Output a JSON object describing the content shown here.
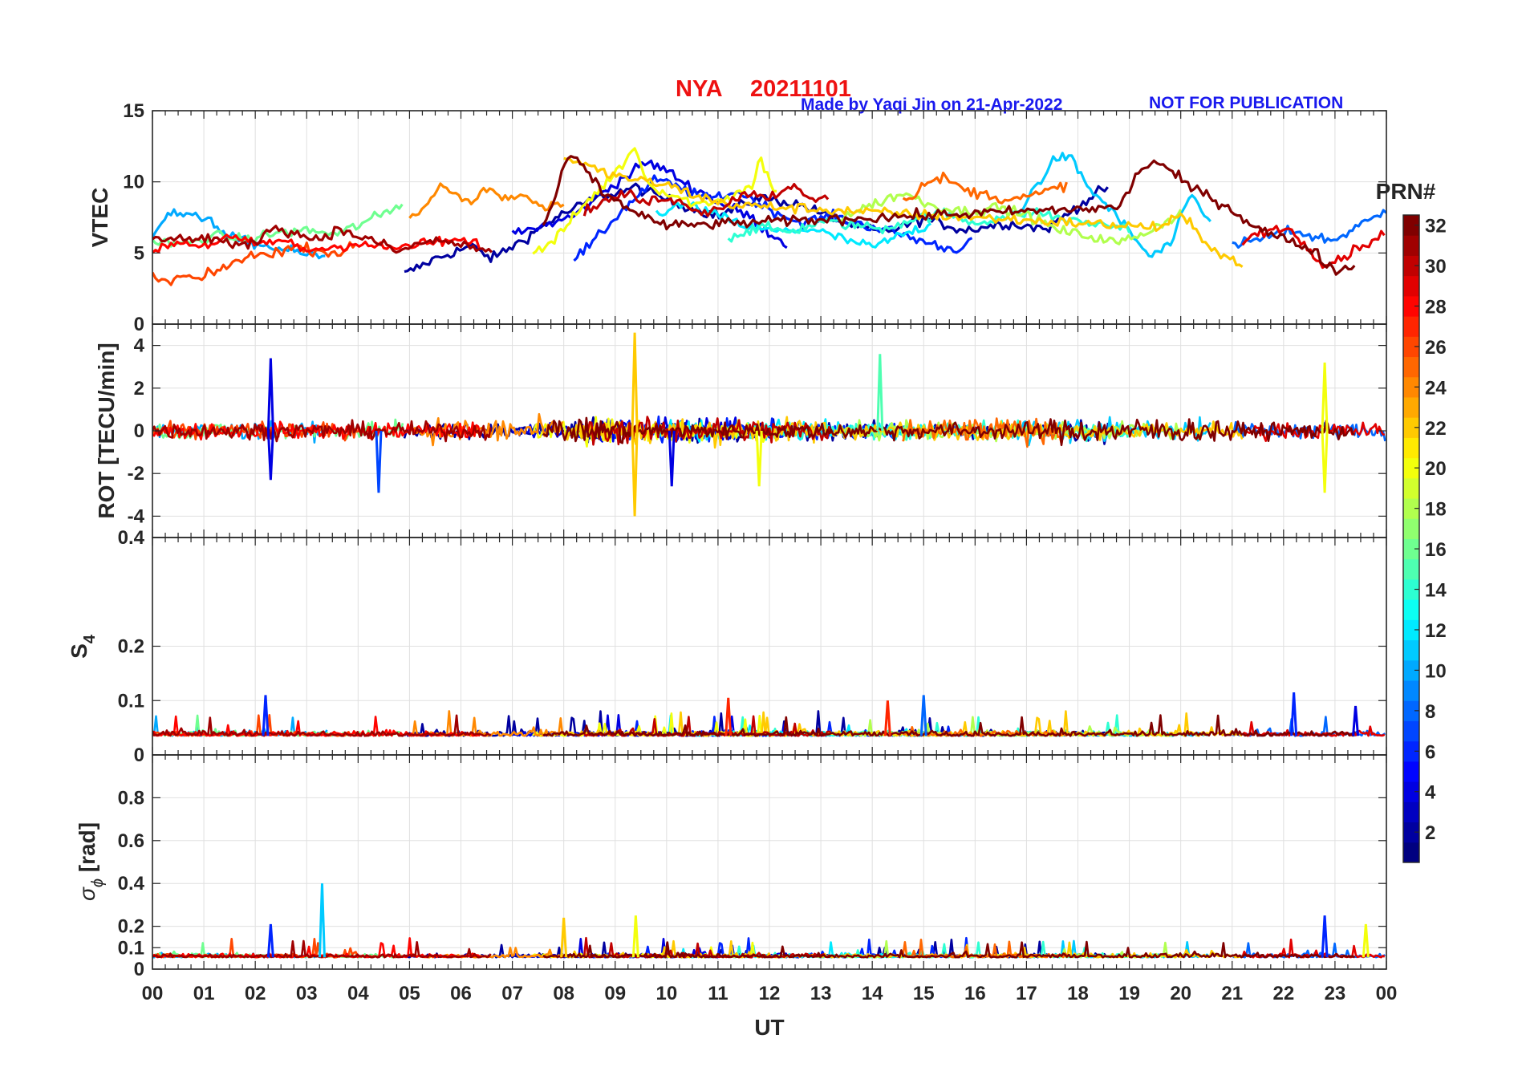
{
  "chart_data": {
    "type": "line",
    "title": {
      "station": "NYA",
      "date": "20211101",
      "credit": "Made by Yaqi Jin on 21-Apr-2022",
      "notice": "NOT FOR PUBLICATION"
    },
    "xlabel": "UT",
    "x_range": [
      0,
      24
    ],
    "x_ticks": [
      "00",
      "01",
      "02",
      "03",
      "04",
      "05",
      "06",
      "07",
      "08",
      "09",
      "10",
      "11",
      "12",
      "13",
      "14",
      "15",
      "16",
      "17",
      "18",
      "19",
      "20",
      "21",
      "22",
      "23",
      "00"
    ],
    "colorbar": {
      "label": "PRN#",
      "range": [
        1,
        32
      ],
      "ticks": [
        "2",
        "4",
        "6",
        "8",
        "10",
        "12",
        "14",
        "16",
        "18",
        "20",
        "22",
        "24",
        "26",
        "28",
        "30",
        "32"
      ]
    },
    "panels": [
      {
        "id": "vtec",
        "ylabel": "VTEC",
        "ylim": [
          0,
          15
        ],
        "y_ticks": [
          {
            "v": 0,
            "t": "0"
          },
          {
            "v": 5,
            "t": "5"
          },
          {
            "v": 10,
            "t": "10"
          },
          {
            "v": 15,
            "t": "15"
          }
        ],
        "description": "Vertical TEC per satellite, mostly 4-9 TECU, peaks near 12 TECU around 08-10 UT and 18-19 UT"
      },
      {
        "id": "rot",
        "ylabel": "ROT [TECU/min]",
        "ylim": [
          -5,
          5
        ],
        "y_ticks": [
          {
            "v": -4,
            "t": "-4"
          },
          {
            "v": -2,
            "t": "-2"
          },
          {
            "v": 0,
            "t": "0"
          },
          {
            "v": 2,
            "t": "2"
          },
          {
            "v": 4,
            "t": "4"
          }
        ],
        "description": "Rate of TEC, mostly within +/-1, spikes to +4.6 and -4 near 09.4 UT"
      },
      {
        "id": "s4",
        "ylabel_main": "S",
        "ylabel_sub": "4",
        "ylim": [
          0,
          0.4
        ],
        "y_ticks": [
          {
            "v": 0,
            "t": "0"
          },
          {
            "v": 0.1,
            "t": "0.1"
          },
          {
            "v": 0.2,
            "t": "0.2"
          },
          {
            "v": 0.4,
            "t": "0.4"
          }
        ],
        "description": "Amplitude scintillation index, mostly 0.03-0.06, peaks near 0.11"
      },
      {
        "id": "sigma_phi",
        "ylabel_main": "σ",
        "ylabel_sub": "ϕ",
        "ylabel_unit": " [rad]",
        "ylim": [
          0,
          1
        ],
        "y_ticks": [
          {
            "v": 0,
            "t": "0"
          },
          {
            "v": 0.1,
            "t": "0.1"
          },
          {
            "v": 0.2,
            "t": "0.2"
          },
          {
            "v": 0.4,
            "t": "0.4"
          },
          {
            "v": 0.6,
            "t": "0.6"
          },
          {
            "v": 0.8,
            "t": "0.8"
          }
        ],
        "description": "Phase scintillation index, mostly 0.04-0.1, spike to 0.4 near 03.3 UT"
      }
    ],
    "series": [
      {
        "prn": 2,
        "x": [
          4.9,
          5.5,
          6.2,
          6.6,
          7.2,
          7.8,
          8.6,
          9.4,
          10.2,
          11.0,
          11.8,
          12.6,
          13.4,
          14.2,
          15.0,
          15.8,
          16.6,
          17.4,
          18.0,
          18.6
        ],
        "y": [
          3.5,
          4.6,
          5.5,
          4.6,
          5.9,
          7.4,
          8.8,
          9.6,
          8.5,
          7.6,
          8.9,
          8.4,
          7.2,
          6.4,
          7.4,
          6.6,
          7.1,
          6.7,
          8.3,
          9.7
        ]
      },
      {
        "prn": 4,
        "x": [
          7.0,
          7.6,
          8.2,
          8.8,
          9.3,
          9.6,
          10.0,
          10.4,
          11.0,
          11.6,
          12.0,
          12.4
        ],
        "y": [
          6.3,
          6.9,
          7.6,
          9.4,
          10.6,
          11.4,
          10.8,
          9.8,
          8.6,
          7.6,
          6.4,
          5.5
        ]
      },
      {
        "prn": 6,
        "x": [
          8.2,
          8.6,
          9.0,
          9.4,
          9.8,
          10.3,
          10.8,
          11.4,
          12.0,
          12.6,
          13.2,
          13.8,
          14.4,
          15.0,
          15.6,
          16.0
        ],
        "y": [
          4.6,
          5.8,
          7.5,
          8.9,
          10.2,
          9.5,
          8.8,
          9.3,
          8.1,
          7.1,
          7.6,
          7.0,
          6.5,
          5.8,
          5.2,
          6.1
        ]
      },
      {
        "prn": 8,
        "x": [
          21.0,
          21.4,
          21.8,
          22.2,
          22.6,
          23.0,
          23.4,
          23.8,
          24.0
        ],
        "y": [
          5.4,
          5.9,
          6.2,
          6.6,
          6.1,
          5.9,
          6.8,
          7.5,
          8.1
        ]
      },
      {
        "prn": 10,
        "x": [
          0.0,
          0.3,
          0.6,
          0.9,
          1.1,
          1.4,
          1.8,
          2.2,
          2.6,
          3.0,
          3.4
        ],
        "y": [
          6.4,
          7.8,
          7.7,
          7.4,
          7.6,
          6.2,
          5.8,
          5.5,
          5.2,
          4.9,
          4.7
        ]
      },
      {
        "prn": 11,
        "x": [
          16.8,
          17.2,
          17.6,
          17.9,
          18.2,
          18.6,
          19.0,
          19.4,
          19.8,
          20.2,
          20.6
        ],
        "y": [
          7.6,
          9.8,
          11.8,
          11.5,
          9.6,
          8.2,
          6.5,
          4.7,
          5.6,
          9.1,
          7.0
        ]
      },
      {
        "prn": 12,
        "x": [
          9.8,
          10.4,
          11.0,
          11.6,
          12.2,
          12.8,
          13.4,
          14.0,
          14.6,
          15.2
        ],
        "y": [
          7.8,
          8.4,
          7.6,
          6.8,
          6.5,
          6.7,
          6.0,
          5.4,
          6.3,
          7.1
        ]
      },
      {
        "prn": 14,
        "x": [
          11.2,
          11.8,
          12.4,
          13.0,
          13.6,
          14.2,
          14.8,
          15.4,
          16.0,
          16.6,
          17.2,
          17.8,
          18.4,
          19.0
        ],
        "y": [
          6.1,
          6.8,
          6.5,
          7.2,
          7.0,
          6.7,
          7.4,
          7.8,
          7.1,
          7.6,
          7.9,
          7.3,
          7.0,
          6.8
        ]
      },
      {
        "prn": 16,
        "x": [
          0.0,
          0.6,
          1.2,
          1.8,
          2.4,
          3.0,
          3.6,
          4.2,
          4.6,
          4.9
        ],
        "y": [
          5.8,
          5.6,
          6.2,
          5.9,
          6.4,
          6.6,
          6.3,
          7.3,
          7.9,
          8.6
        ]
      },
      {
        "prn": 18,
        "x": [
          13.4,
          14.0,
          14.6,
          15.2,
          15.8,
          16.4,
          17.0,
          17.6,
          18.2,
          18.8,
          19.4,
          20.0
        ],
        "y": [
          7.5,
          8.4,
          9.2,
          8.3,
          7.9,
          8.2,
          7.7,
          6.6,
          6.2,
          5.7,
          6.6,
          7.8
        ]
      },
      {
        "prn": 20,
        "x": [
          7.4,
          7.8,
          8.4,
          8.9,
          9.2,
          9.4,
          9.6,
          10.0,
          10.6,
          11.2,
          11.7,
          11.8,
          12.2
        ],
        "y": [
          5.0,
          5.8,
          8.4,
          10.2,
          11.5,
          12.6,
          10.0,
          9.2,
          8.4,
          8.9,
          9.8,
          11.8,
          8.6
        ]
      },
      {
        "prn": 22,
        "x": [
          8.0,
          8.4,
          8.8,
          9.2,
          9.6,
          10.0,
          10.6,
          11.2,
          19.6,
          20.0,
          20.4,
          20.8,
          21.2
        ],
        "y": [
          11.8,
          11.2,
          10.6,
          10.3,
          10.0,
          9.8,
          9.0,
          8.4,
          6.8,
          7.6,
          6.2,
          4.8,
          4.3
        ]
      },
      {
        "prn": 24,
        "x": [
          5.0,
          5.4,
          5.6,
          5.9,
          6.2,
          6.5,
          6.8,
          7.2,
          7.6,
          8.0
        ],
        "y": [
          7.2,
          8.6,
          9.8,
          9.1,
          8.5,
          9.6,
          8.9,
          9.1,
          8.3,
          8.6
        ]
      },
      {
        "prn": 25,
        "x": [
          14.6,
          15.0,
          15.4,
          15.8,
          16.2,
          16.6,
          17.0,
          17.4,
          17.8
        ],
        "y": [
          8.6,
          9.8,
          10.3,
          9.4,
          9.1,
          8.8,
          8.9,
          9.3,
          9.9
        ]
      },
      {
        "prn": 26,
        "x": [
          0.0,
          0.3,
          0.6,
          0.9,
          1.2,
          1.6,
          2.0,
          2.4,
          2.8,
          3.2,
          3.6,
          4.0
        ],
        "y": [
          3.3,
          2.9,
          3.4,
          3.1,
          3.6,
          4.4,
          4.8,
          5.1,
          5.4,
          5.2,
          5.0,
          5.5
        ]
      },
      {
        "prn": 28,
        "x": [
          0.0,
          0.5,
          1.0,
          1.5,
          2.0,
          2.5,
          3.0,
          3.5,
          4.0,
          4.6,
          5.2,
          5.8,
          6.4
        ],
        "y": [
          5.2,
          5.8,
          5.5,
          6.1,
          5.6,
          5.9,
          5.2,
          5.4,
          5.7,
          5.3,
          5.6,
          5.9,
          5.6
        ]
      },
      {
        "prn": 29,
        "x": [
          21.2,
          21.6,
          22.0,
          22.4,
          22.8,
          23.2,
          23.6,
          24.0
        ],
        "y": [
          5.8,
          6.5,
          6.9,
          5.7,
          4.2,
          4.8,
          5.7,
          6.3
        ]
      },
      {
        "prn": 30,
        "x": [
          8.4,
          8.8,
          9.2,
          9.6,
          10.0,
          10.4,
          10.8,
          11.2,
          11.6,
          12.0,
          12.4,
          12.8,
          13.2
        ],
        "y": [
          8.0,
          8.6,
          9.2,
          8.5,
          9.0,
          8.3,
          7.9,
          8.5,
          9.3,
          8.9,
          9.8,
          8.6,
          9.1
        ]
      },
      {
        "prn": 31,
        "x": [
          0.0,
          0.4,
          0.8,
          1.2,
          1.6,
          2.0,
          2.4,
          2.8,
          3.2,
          3.6,
          4.0,
          4.4,
          4.8,
          5.4,
          6.0,
          6.6
        ],
        "y": [
          5.8,
          6.2,
          5.9,
          6.1,
          5.4,
          5.8,
          6.9,
          6.3,
          6.0,
          6.6,
          6.2,
          5.7,
          5.1,
          5.9,
          5.6,
          5.1
        ]
      },
      {
        "prn": 32,
        "x": [
          7.6,
          7.9,
          8.1,
          8.4,
          8.8,
          9.2,
          9.6,
          10.0,
          18.8,
          19.2,
          19.5,
          19.8,
          20.2,
          20.6,
          21.0,
          21.4,
          21.8,
          22.2,
          22.6,
          23.0,
          23.4
        ],
        "y": [
          6.8,
          9.6,
          12.0,
          10.9,
          9.1,
          8.3,
          7.5,
          6.9,
          8.2,
          10.8,
          11.5,
          10.7,
          9.6,
          8.9,
          8.0,
          7.0,
          6.2,
          5.8,
          5.1,
          3.7,
          4.1
        ]
      }
    ]
  }
}
